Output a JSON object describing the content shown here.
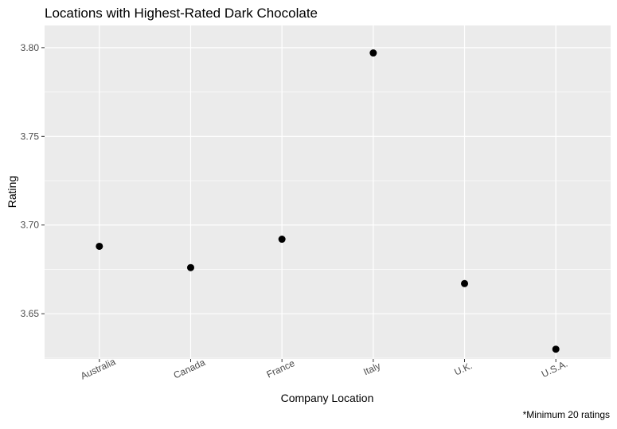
{
  "chart_data": {
    "type": "scatter",
    "title": "Locations with Highest-Rated Dark Chocolate",
    "xlabel": "Company Location",
    "ylabel": "Rating",
    "caption": "*Minimum 20 ratings",
    "categories": [
      "Australia",
      "Canada",
      "France",
      "Italy",
      "U.K.",
      "U.S.A."
    ],
    "values": [
      3.688,
      3.676,
      3.692,
      3.797,
      3.667,
      3.63
    ],
    "ylim": [
      3.6245,
      3.8125
    ],
    "yticks": [
      3.65,
      3.7,
      3.75,
      3.8
    ],
    "ytick_labels": [
      "3.65",
      "3.70",
      "3.75",
      "3.80"
    ],
    "grid": true,
    "panel_color": "#ebebeb",
    "grid_color": "#ffffff",
    "point_color": "#000000",
    "legend": "none"
  }
}
